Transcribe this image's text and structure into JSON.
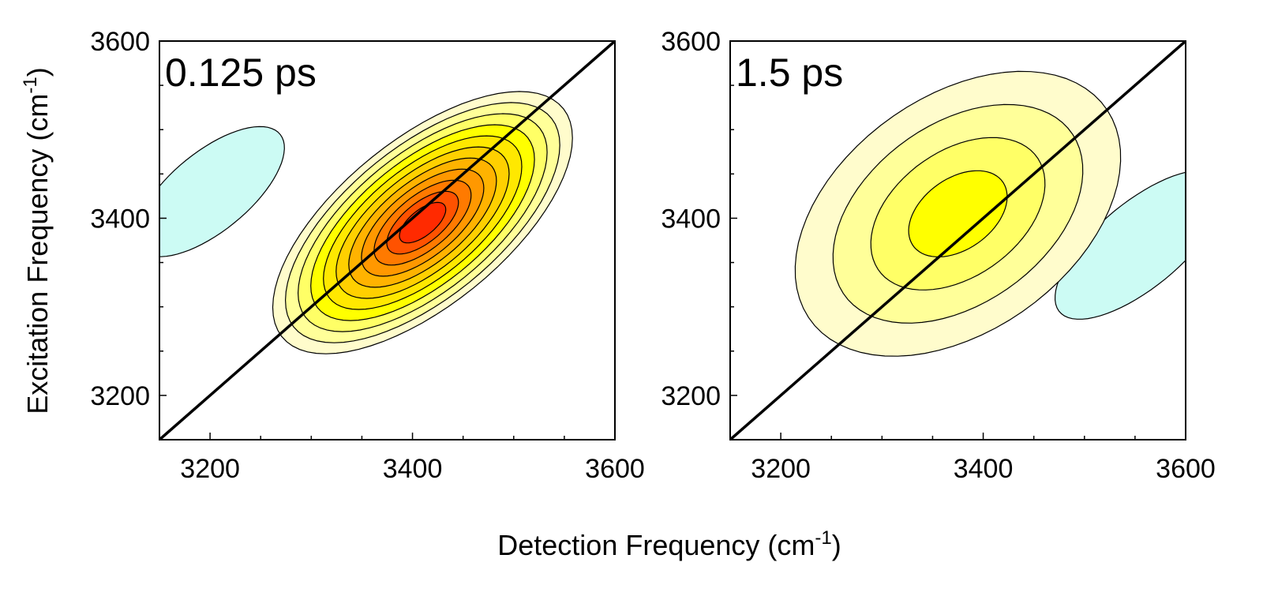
{
  "figure": {
    "ylabel": {
      "main": "Excitation Frequency (cm",
      "sup": "-1",
      "close": ")"
    },
    "xlabel": {
      "main": "Detection Frequency (cm",
      "sup": "-1",
      "close": ")"
    }
  },
  "chart_data": [
    {
      "type": "heatmap",
      "subtype": "2D IR contour",
      "panel_label": "0.125 ps",
      "xlim": [
        3150,
        3600
      ],
      "ylim": [
        3150,
        3600
      ],
      "xticks": [
        3200,
        3400,
        3600
      ],
      "yticks": [
        3200,
        3400,
        3600
      ],
      "xtick_labels": [
        "3200",
        "3400",
        "3600"
      ],
      "ytick_labels": [
        "3200",
        "3400",
        "3600"
      ],
      "diagonal": [
        [
          3150,
          3150
        ],
        [
          3600,
          3600
        ]
      ],
      "grid": false,
      "positive_peak": {
        "center": [
          3410,
          3395
        ],
        "diag_halfwidth": 190,
        "anti_halfwidth": 88,
        "levels": 11,
        "relative_amplitude": 1.0
      },
      "negative_peak": {
        "center": [
          3200,
          3430
        ],
        "diag_halfwidth": 95,
        "anti_halfwidth": 42,
        "relative_amplitude": 0.1
      }
    },
    {
      "type": "heatmap",
      "subtype": "2D IR contour",
      "panel_label": "1.5 ps",
      "xlim": [
        3150,
        3600
      ],
      "ylim": [
        3150,
        3600
      ],
      "xticks": [
        3200,
        3400,
        3600
      ],
      "yticks": [
        3200,
        3400,
        3600
      ],
      "xtick_labels": [
        "3200",
        "3400",
        "3600"
      ],
      "ytick_labels": [
        "3200",
        "3400",
        "3600"
      ],
      "diagonal": [
        [
          3150,
          3150
        ],
        [
          3600,
          3600
        ]
      ],
      "grid": false,
      "positive_peak": {
        "center": [
          3375,
          3405
        ],
        "diag_halfwidth": 190,
        "anti_halfwidth": 125,
        "levels": 4,
        "relative_amplitude": 0.35
      },
      "negative_peak": {
        "center": [
          3555,
          3370
        ],
        "diag_halfwidth": 110,
        "anti_halfwidth": 45,
        "relative_amplitude": 0.08
      }
    }
  ],
  "colors": {
    "negative_fill": "#ccfbf4",
    "level_fills": [
      "#fffccc",
      "#ffff99",
      "#ffff66",
      "#ffff00",
      "#ffe800",
      "#ffd000",
      "#ffb300",
      "#ff9800",
      "#ff7a00",
      "#ff5200",
      "#ff2a00",
      "#ff0000"
    ],
    "contour_line": "#000000",
    "diagonal_line": "#000000"
  }
}
